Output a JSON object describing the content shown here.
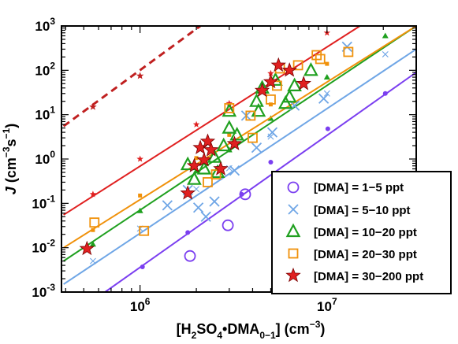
{
  "chart_data": {
    "type": "scatter",
    "title": "",
    "x_scale": "log",
    "y_scale": "log",
    "xlim": [
      380000,
      30000000
    ],
    "ylim": [
      0.001,
      1000
    ],
    "grid": false,
    "legend_position": "bottom-right",
    "x_ticks": [
      {
        "value": 1000000,
        "base": "10",
        "exp": "6"
      },
      {
        "value": 10000000,
        "base": "10",
        "exp": "7"
      }
    ],
    "y_ticks": [
      {
        "value": 0.001,
        "base": "10",
        "exp": "-3"
      },
      {
        "value": 0.01,
        "base": "10",
        "exp": "-2"
      },
      {
        "value": 0.1,
        "base": "10",
        "exp": "-1"
      },
      {
        "value": 1,
        "base": "10",
        "exp": "0"
      },
      {
        "value": 10,
        "base": "10",
        "exp": "1"
      },
      {
        "value": 100,
        "base": "10",
        "exp": "2"
      },
      {
        "value": 1000,
        "base": "10",
        "exp": "3"
      }
    ],
    "xlabel": {
      "open": "[H",
      "s1": "2",
      "mid1": "SO",
      "s2": "4",
      "mid2": "•DMA",
      "s3": "0−1",
      "close": "] (cm",
      "sup": "−3",
      "end": ")"
    },
    "ylabel": {
      "italic": "J",
      "open": " (cm",
      "sup1": "−3",
      "mid": "s",
      "sup2": "−1",
      "close": ")"
    },
    "series": [
      {
        "name": "[DMA] = 1−5 ppt",
        "marker": "circle",
        "color": "#7b3ff0",
        "points": [
          [
            1850000,
            0.0065
          ],
          [
            2950000,
            0.032
          ],
          [
            3650000,
            0.16
          ]
        ],
        "model_line": [
          [
            650000,
            0.001
          ],
          [
            30000000,
            90
          ]
        ],
        "model_points": [
          [
            1030000,
            0.0037
          ],
          [
            1800000,
            0.022
          ],
          [
            3500000,
            0.16
          ],
          [
            5000000,
            0.85
          ],
          [
            10100000,
            4.8
          ],
          [
            20500000,
            30
          ]
        ]
      },
      {
        "name": "[DMA] = 5−10 ppt",
        "marker": "x",
        "color": "#6fa6e6",
        "points": [
          [
            1400000,
            0.09
          ],
          [
            1800000,
            0.2
          ],
          [
            2050000,
            0.08
          ],
          [
            2250000,
            0.05
          ],
          [
            2500000,
            0.11
          ],
          [
            3200000,
            0.55
          ],
          [
            3700000,
            9.5
          ],
          [
            4200000,
            1.8
          ],
          [
            5100000,
            4
          ],
          [
            6700000,
            16
          ],
          [
            9600000,
            23
          ],
          [
            12800000,
            340
          ]
        ],
        "model_line": [
          [
            390000,
            0.0015
          ],
          [
            30000000,
            300
          ]
        ],
        "model_points": [
          [
            560000,
            0.005
          ],
          [
            1000000,
            0.027
          ],
          [
            2000000,
            0.21
          ],
          [
            3000000,
            0.62
          ],
          [
            5000000,
            3.2
          ],
          [
            10000000,
            30
          ],
          [
            20500000,
            230
          ]
        ]
      },
      {
        "name": "[DMA] = 10−20 ppt",
        "marker": "triangle",
        "color": "#1fa01f",
        "points": [
          [
            1800000,
            0.75
          ],
          [
            1950000,
            0.35
          ],
          [
            2200000,
            0.6
          ],
          [
            2500000,
            1.1
          ],
          [
            2600000,
            0.5
          ],
          [
            2800000,
            2
          ],
          [
            3000000,
            12
          ],
          [
            3000000,
            5
          ],
          [
            3300000,
            3.5
          ],
          [
            4200000,
            20
          ],
          [
            4500000,
            40
          ],
          [
            4300000,
            12
          ],
          [
            5300000,
            60
          ],
          [
            6300000,
            25
          ],
          [
            6000000,
            18
          ],
          [
            6700000,
            45
          ],
          [
            8200000,
            100
          ]
        ],
        "model_line": [
          [
            390000,
            0.005
          ],
          [
            30000000,
            1000
          ]
        ],
        "model_points": [
          [
            560000,
            0.012
          ],
          [
            1000000,
            0.068
          ],
          [
            2000000,
            0.54
          ],
          [
            3000000,
            1.6
          ],
          [
            5000000,
            8.2
          ],
          [
            10000000,
            70
          ],
          [
            20500000,
            600
          ]
        ]
      },
      {
        "name": "[DMA] = 20−30 ppt",
        "marker": "square",
        "color": "#f0910a",
        "points": [
          [
            570000,
            0.037
          ],
          [
            1050000,
            0.024
          ],
          [
            2300000,
            0.3
          ],
          [
            2550000,
            0.45
          ],
          [
            3000000,
            14
          ],
          [
            3900000,
            9.5
          ],
          [
            4000000,
            3
          ],
          [
            5400000,
            45
          ],
          [
            5000000,
            22
          ],
          [
            5600000,
            110
          ],
          [
            7000000,
            130
          ],
          [
            8800000,
            220
          ],
          [
            9200000,
            180
          ],
          [
            13000000,
            260
          ]
        ],
        "model_line": [
          [
            390000,
            0.01
          ],
          [
            30000000,
            1000
          ]
        ],
        "model_points": [
          [
            560000,
            0.025
          ],
          [
            1000000,
            0.15
          ],
          [
            2000000,
            1.05
          ],
          [
            3000000,
            3.5
          ],
          [
            5000000,
            17
          ],
          [
            10000000,
            140
          ]
        ]
      },
      {
        "name": "[DMA] = 30−200 ppt",
        "marker": "star",
        "color": "#e02020",
        "points": [
          [
            520000,
            0.0095
          ],
          [
            1800000,
            0.17
          ],
          [
            1950000,
            0.7
          ],
          [
            2100000,
            1.8
          ],
          [
            2200000,
            0.95
          ],
          [
            2300000,
            2.5
          ],
          [
            2400000,
            1.6
          ],
          [
            2700000,
            0.6
          ],
          [
            3200000,
            2.2
          ],
          [
            4500000,
            35
          ],
          [
            5000000,
            55
          ],
          [
            5500000,
            130
          ],
          [
            6300000,
            100
          ],
          [
            7500000,
            50
          ]
        ],
        "model_line": [
          [
            390000,
            0.055
          ],
          [
            15000000,
            1000
          ]
        ],
        "model_points": [
          [
            560000,
            0.16
          ],
          [
            1000000,
            1
          ],
          [
            2000000,
            6
          ],
          [
            3000000,
            18
          ],
          [
            5000000,
            85
          ],
          [
            10000000,
            700
          ]
        ]
      }
    ],
    "extra_lines": [
      {
        "style": "dashed",
        "color": "#c02020",
        "from": [
          390000,
          5.5
        ],
        "to": [
          2100000,
          1000
        ],
        "points": [
          [
            560000,
            15
          ],
          [
            1000000,
            75
          ]
        ]
      }
    ]
  },
  "legend": {
    "items": [
      "[DMA] = 1−5 ppt",
      "[DMA] = 5−10 ppt",
      "[DMA] = 10−20 ppt",
      "[DMA] = 20−30 ppt",
      "[DMA] = 30−200 ppt"
    ]
  }
}
